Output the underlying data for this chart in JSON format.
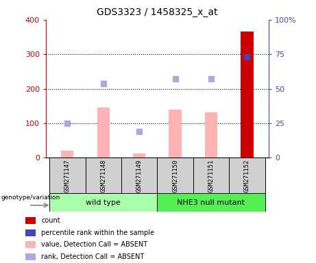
{
  "title": "GDS3323 / 1458325_x_at",
  "samples": [
    "GSM271147",
    "GSM271148",
    "GSM271149",
    "GSM271150",
    "GSM271151",
    "GSM271152"
  ],
  "x_positions": [
    0,
    1,
    2,
    3,
    4,
    5
  ],
  "bar_values": [
    20,
    145,
    13,
    140,
    132,
    365
  ],
  "bar_colors": [
    "#ffb3b3",
    "#ffb3b3",
    "#ffb3b3",
    "#ffb3b3",
    "#ffb3b3",
    "#cc0000"
  ],
  "rank_values": [
    25,
    54,
    19,
    57,
    57,
    73
  ],
  "rank_colors": [
    "#aaaadd",
    "#aaaadd",
    "#aaaadd",
    "#aaaadd",
    "#aaaadd",
    "#4444bb"
  ],
  "ylim_left": [
    0,
    400
  ],
  "ylim_right": [
    0,
    100
  ],
  "yticks_left": [
    0,
    100,
    200,
    300,
    400
  ],
  "ytick_labels_left": [
    "0",
    "100",
    "200",
    "300",
    "400"
  ],
  "ytick_labels_right": [
    "0",
    "25",
    "50",
    "75",
    "100%"
  ],
  "yticks_right": [
    0,
    25,
    50,
    75,
    100
  ],
  "group1_label": "wild type",
  "group2_label": "NHE3 null mutant",
  "group1_color": "#aaffaa",
  "group2_color": "#55ee55",
  "genotype_label": "genotype/variation",
  "legend_items": [
    {
      "label": "count",
      "color": "#cc0000"
    },
    {
      "label": "percentile rank within the sample",
      "color": "#4444bb"
    },
    {
      "label": "value, Detection Call = ABSENT",
      "color": "#ffb3b3"
    },
    {
      "label": "rank, Detection Call = ABSENT",
      "color": "#aaaadd"
    }
  ],
  "axis_color_left": "#cc0000",
  "axis_color_right": "#4444bb",
  "bar_width": 0.35,
  "marker_size": 6
}
